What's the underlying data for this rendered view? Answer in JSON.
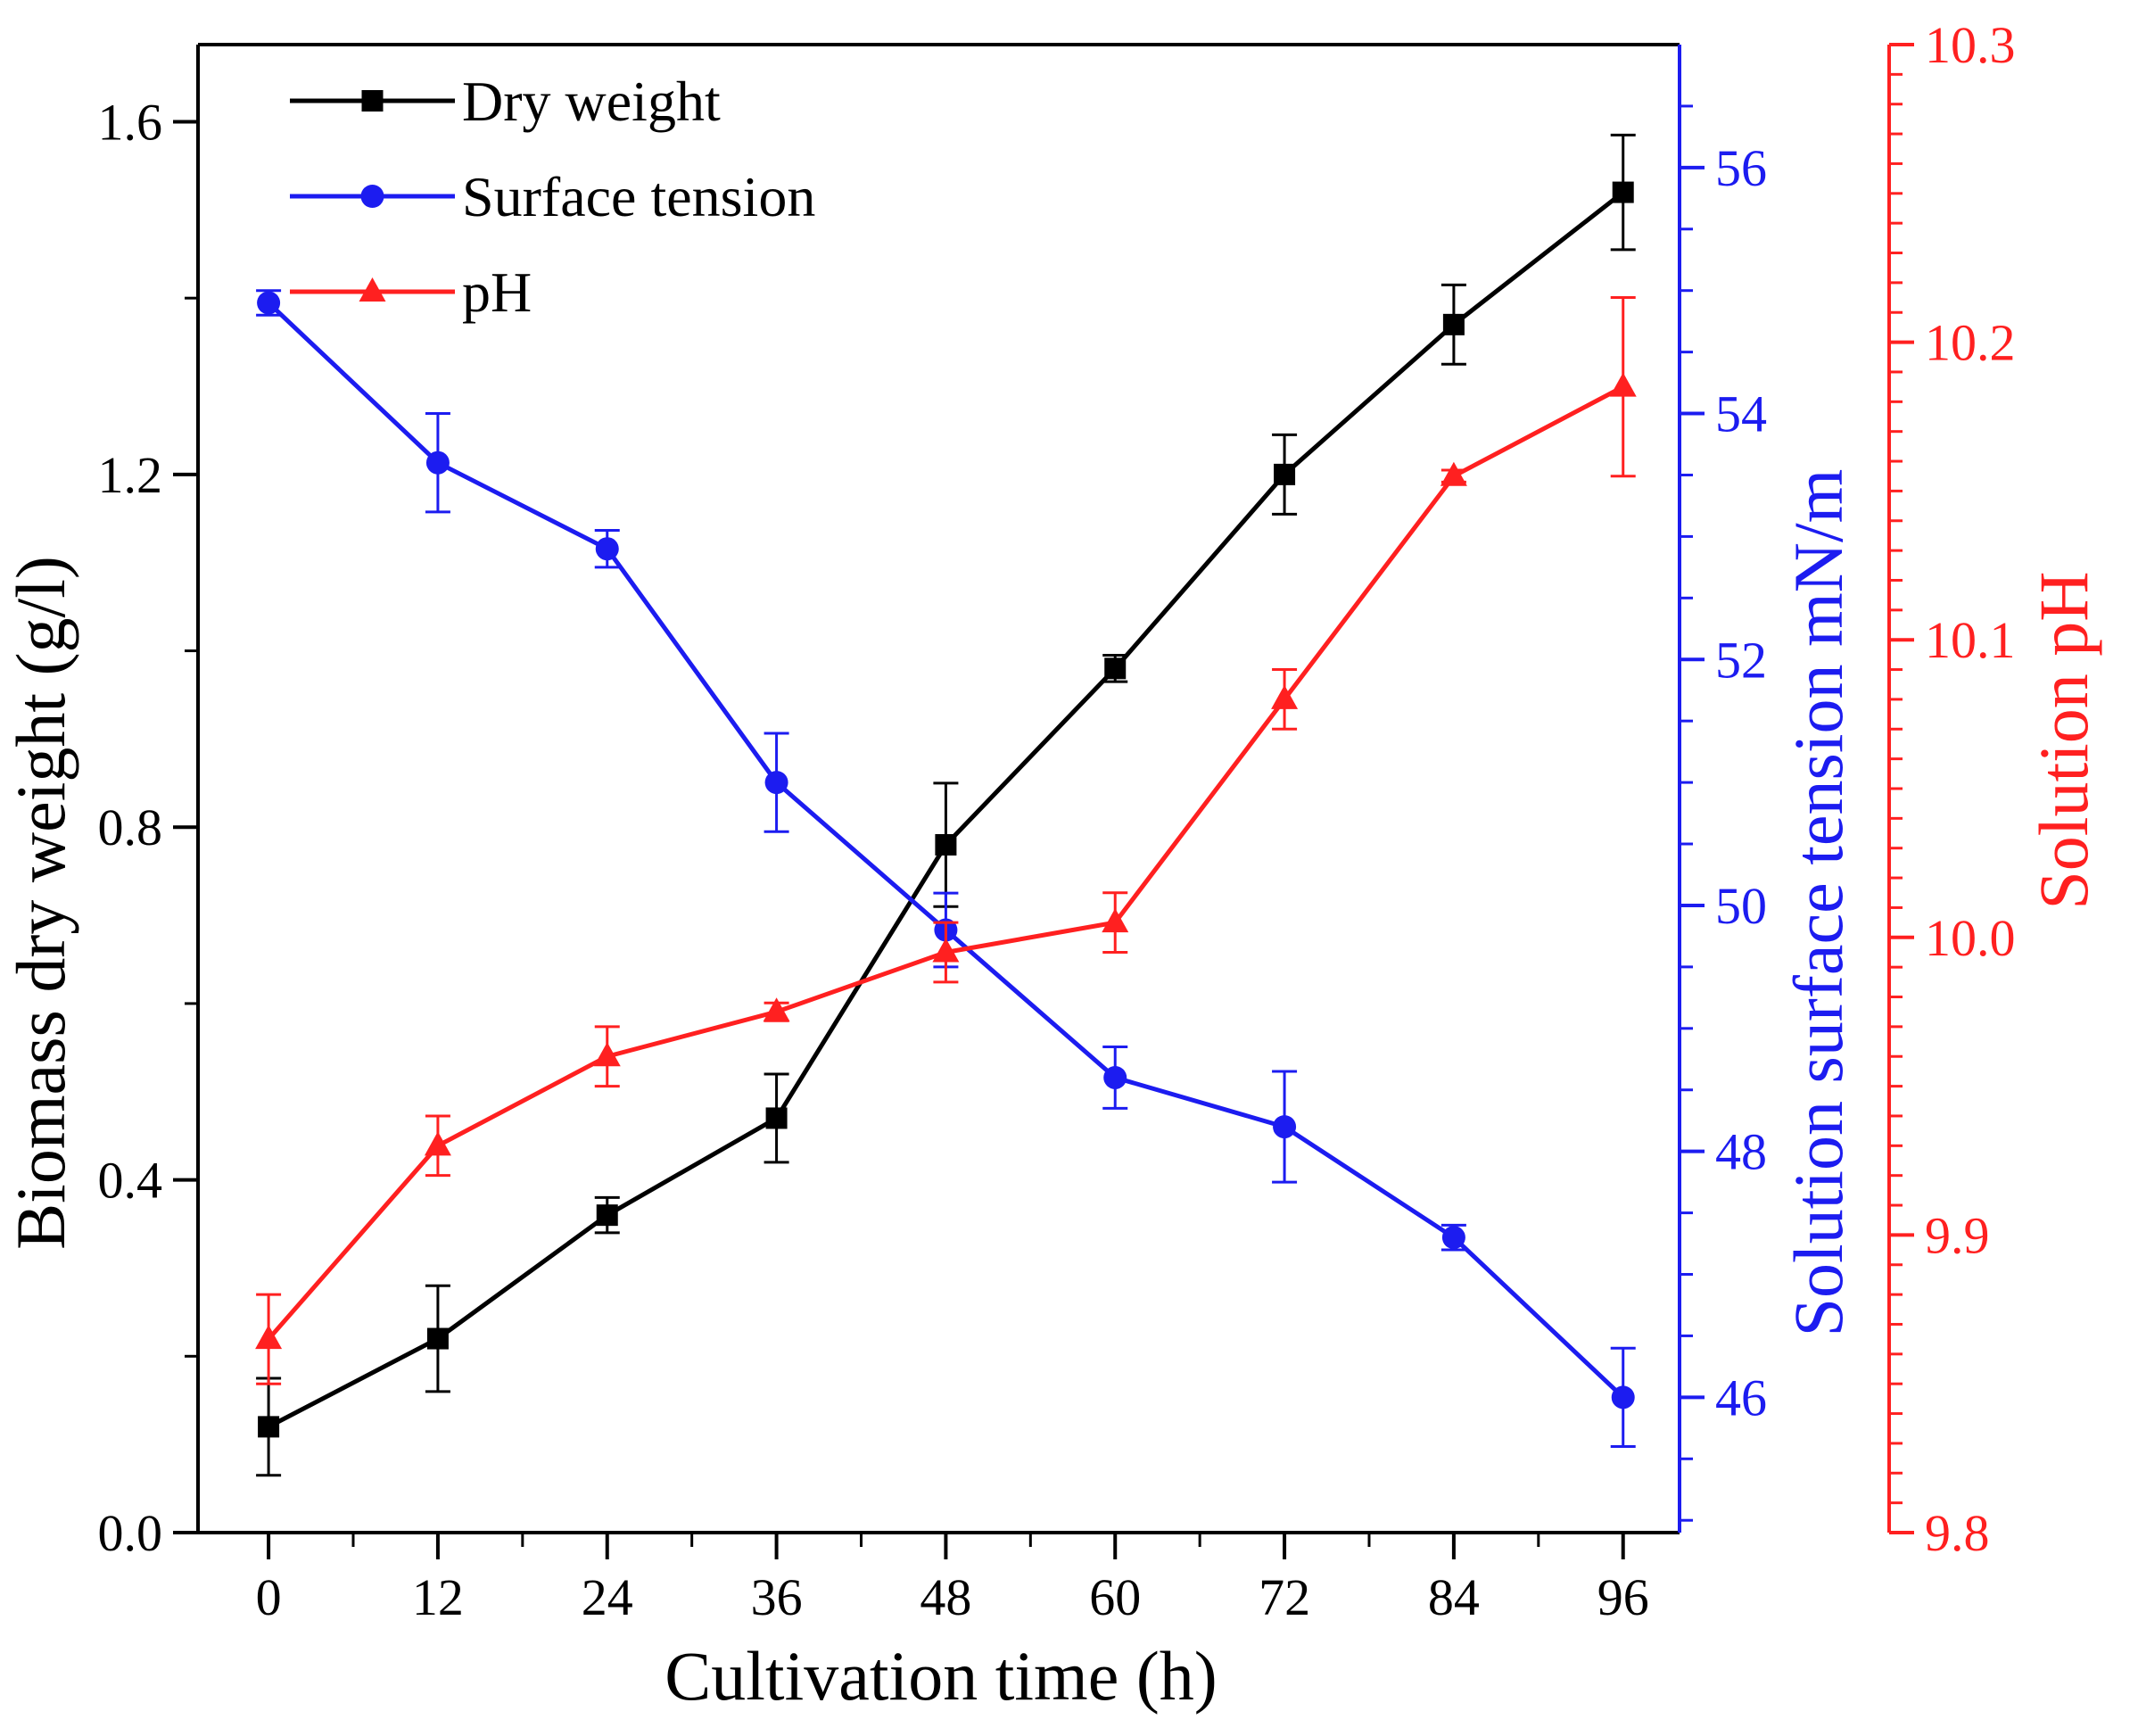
{
  "chart_data": {
    "type": "line",
    "xlabel": "Cultivation time (h)",
    "x": [
      0,
      12,
      24,
      36,
      48,
      60,
      72,
      84,
      96
    ],
    "x_ticks": [
      "0",
      "12",
      "24",
      "36",
      "48",
      "60",
      "72",
      "84",
      "96"
    ],
    "xlim": [
      -5,
      100
    ],
    "axes": {
      "left": {
        "label": "Biomass dry weight (g/l)",
        "ylim": [
          0.0,
          1.6875
        ],
        "ticks": [
          "0.0",
          "0.4",
          "0.8",
          "1.2",
          "1.6"
        ],
        "color": "#000000"
      },
      "right_inner": {
        "label": "Solution surface tension mN/m",
        "ylim": [
          44.9,
          57.0
        ],
        "ticks": [
          "46",
          "48",
          "50",
          "52",
          "54",
          "56"
        ],
        "color": "#1c1cf0"
      },
      "right_outer": {
        "label": "Solution pH",
        "ylim": [
          9.8,
          10.3
        ],
        "ticks": [
          "9.8",
          "9.9",
          "10.0",
          "10.1",
          "10.2",
          "10.3"
        ],
        "color": "#ff2020"
      }
    },
    "series": [
      {
        "name": "Dry weight",
        "axis": "left",
        "color": "#000000",
        "marker": "square",
        "values": [
          0.12,
          0.22,
          0.36,
          0.47,
          0.78,
          0.98,
          1.2,
          1.37,
          1.52
        ],
        "errors": [
          0.055,
          0.06,
          0.02,
          0.05,
          0.07,
          0.015,
          0.045,
          0.045,
          0.065
        ]
      },
      {
        "name": "Surface tension",
        "axis": "right_inner",
        "color": "#1c1cf0",
        "marker": "circle",
        "values": [
          54.9,
          53.6,
          52.9,
          51.0,
          49.8,
          48.6,
          48.2,
          47.3,
          46.0
        ],
        "errors": [
          0.1,
          0.4,
          0.15,
          0.4,
          0.3,
          0.25,
          0.45,
          0.1,
          0.4
        ]
      },
      {
        "name": "pH",
        "axis": "right_outer",
        "color": "#ff2020",
        "marker": "triangle",
        "values": [
          9.865,
          9.93,
          9.96,
          9.975,
          9.995,
          10.005,
          10.08,
          10.155,
          10.185
        ],
        "errors": [
          0.015,
          0.01,
          0.01,
          0.003,
          0.01,
          0.01,
          0.01,
          0.002,
          0.03
        ]
      }
    ],
    "legend_position": "top-left"
  }
}
